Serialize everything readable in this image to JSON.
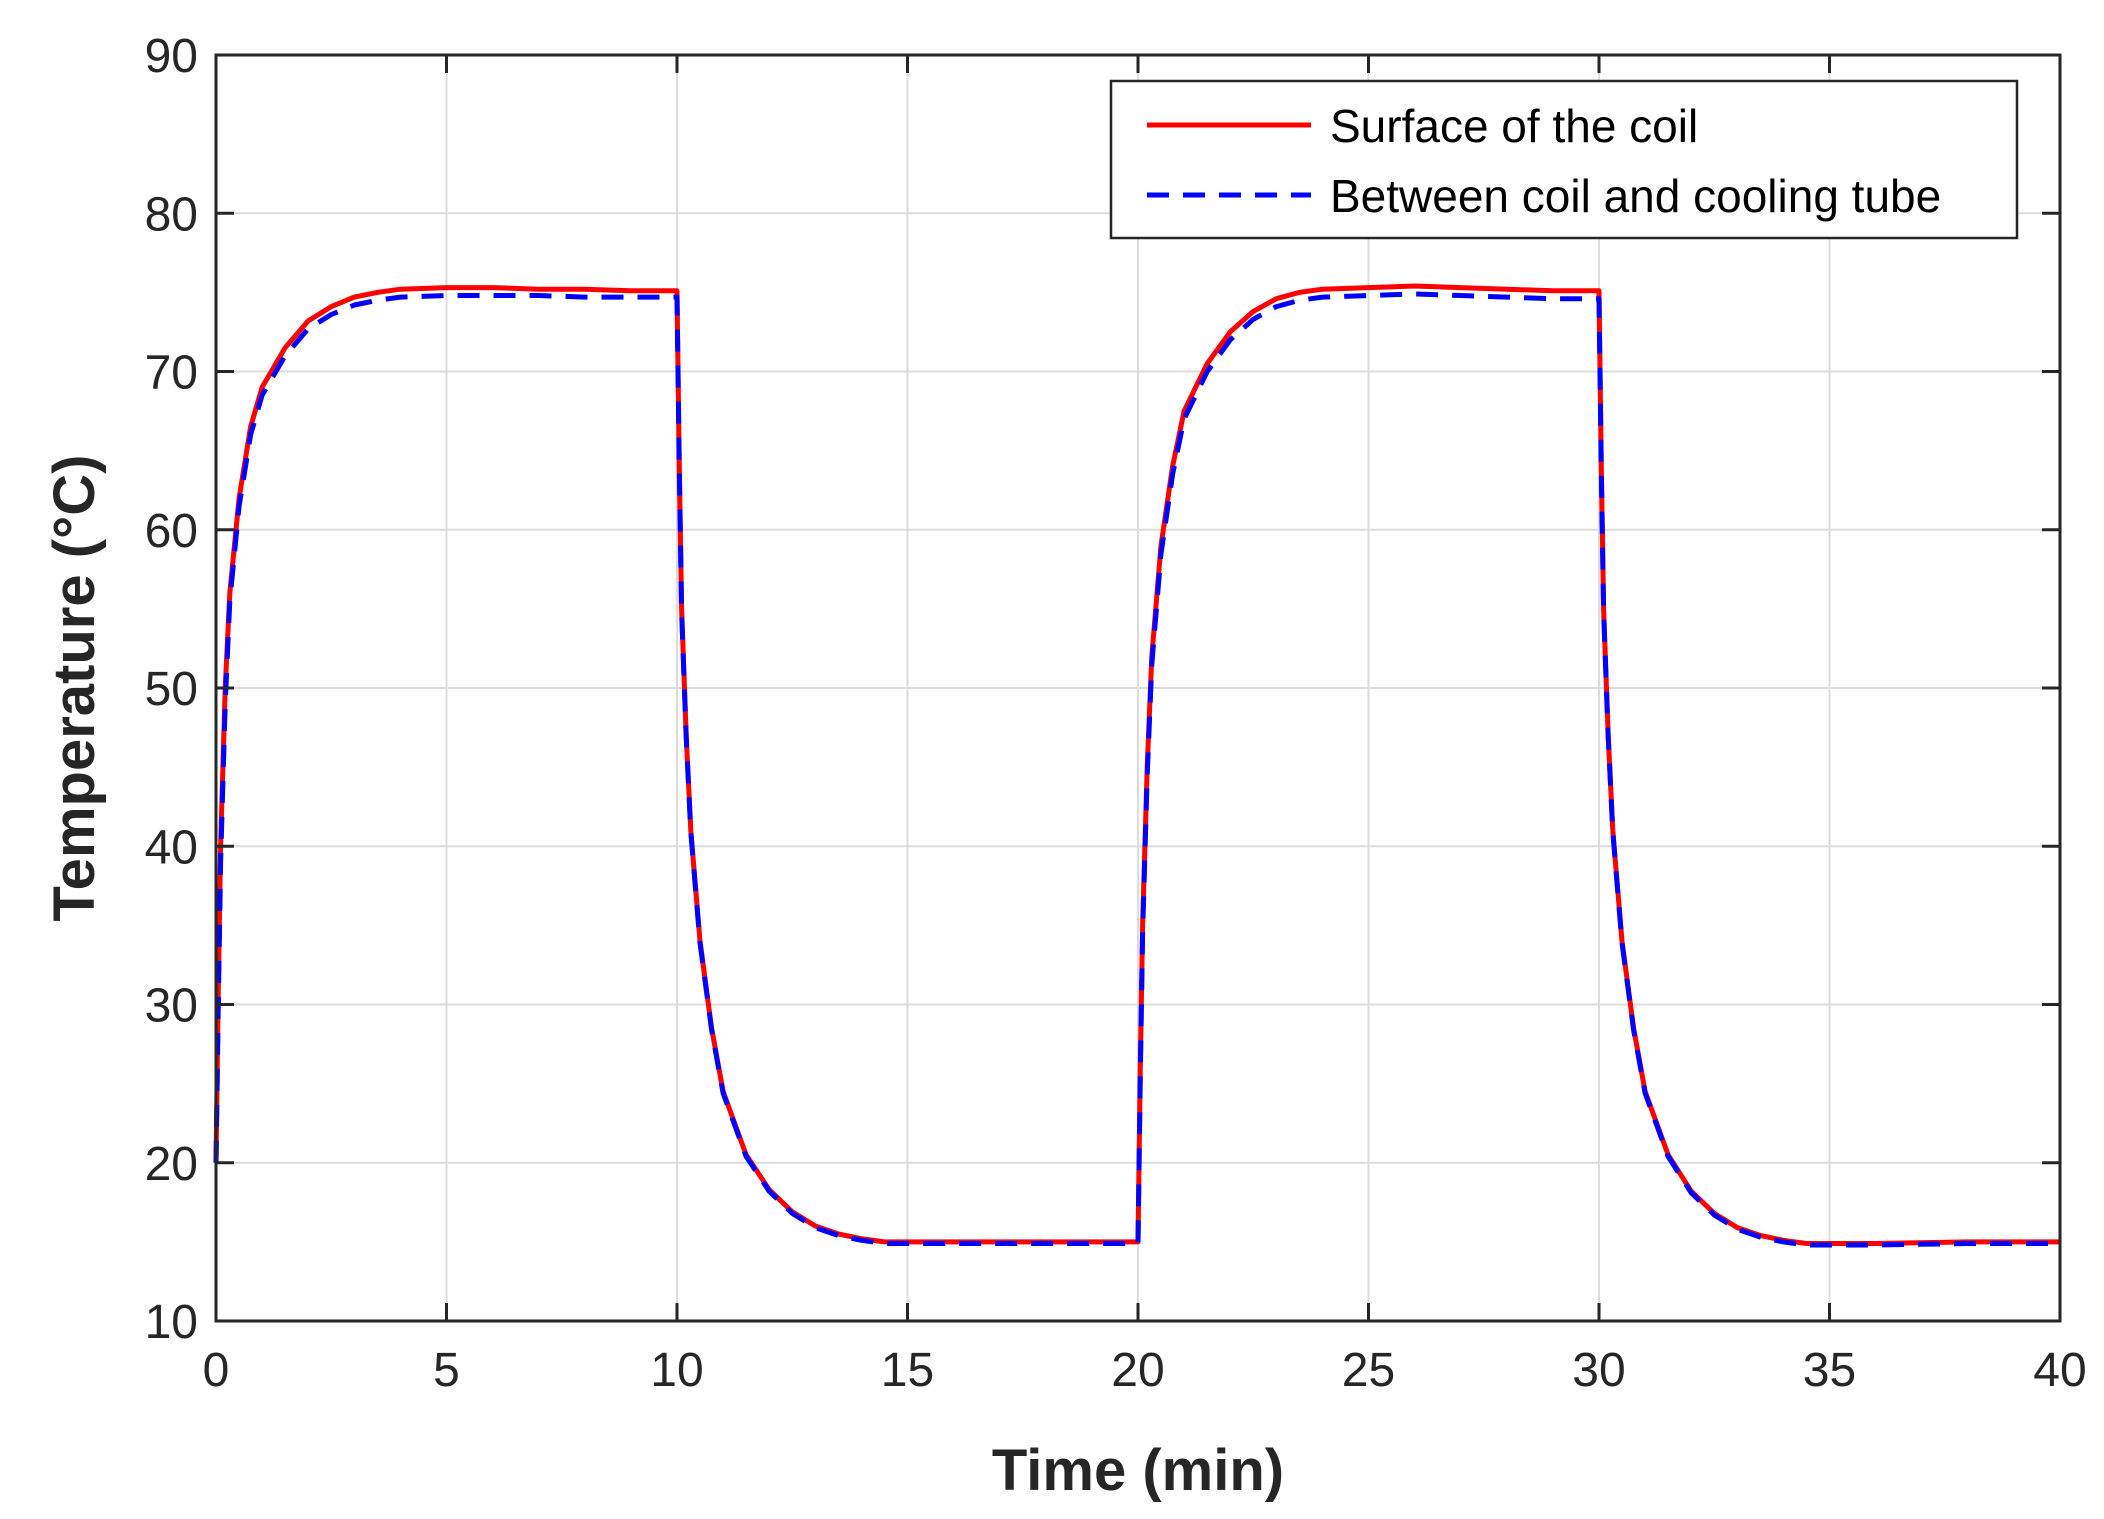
{
  "chart_data": {
    "type": "line",
    "title": "",
    "xlabel": "Time (min)",
    "ylabel": "Temperature (°C)",
    "xlim": [
      0,
      40
    ],
    "ylim": [
      10,
      90
    ],
    "xticks": [
      0,
      5,
      10,
      15,
      20,
      25,
      30,
      35,
      40
    ],
    "yticks": [
      10,
      20,
      30,
      40,
      50,
      60,
      70,
      80,
      90
    ],
    "grid": true,
    "legend_position": "top-right",
    "series": [
      {
        "name": "Surface of the coil",
        "color": "#ff0000",
        "style": "solid",
        "x": [
          0,
          0.05,
          0.1,
          0.2,
          0.3,
          0.5,
          0.75,
          1.0,
          1.5,
          2.0,
          2.5,
          3.0,
          3.5,
          4.0,
          5.0,
          6.0,
          7.0,
          8.0,
          9.0,
          10.0,
          10.05,
          10.1,
          10.2,
          10.3,
          10.5,
          10.75,
          11.0,
          11.5,
          12.0,
          12.5,
          13.0,
          13.5,
          14.0,
          14.5,
          15.0,
          16.0,
          18.0,
          20.0,
          20.05,
          20.1,
          20.2,
          20.3,
          20.5,
          20.75,
          21.0,
          21.5,
          22.0,
          22.5,
          23.0,
          23.5,
          24.0,
          25.0,
          26.0,
          27.0,
          28.0,
          29.0,
          30.0,
          30.05,
          30.1,
          30.2,
          30.3,
          30.5,
          30.75,
          31.0,
          31.5,
          32.0,
          32.5,
          33.0,
          33.5,
          34.0,
          34.5,
          35.0,
          36.0,
          38.0,
          40.0
        ],
        "values": [
          20,
          31,
          40,
          50,
          56,
          62,
          66.5,
          69,
          71.5,
          73.2,
          74.1,
          74.7,
          75.0,
          75.2,
          75.3,
          75.3,
          75.2,
          75.2,
          75.1,
          75.1,
          64,
          55,
          47,
          41,
          34,
          28.5,
          24.5,
          20.5,
          18.3,
          16.9,
          16.0,
          15.5,
          15.2,
          15.0,
          15.0,
          15.0,
          15.0,
          15.0,
          26,
          35,
          45,
          52,
          59,
          64,
          67.5,
          70.5,
          72.5,
          73.8,
          74.6,
          75.0,
          75.2,
          75.3,
          75.4,
          75.3,
          75.2,
          75.1,
          75.1,
          64,
          55,
          47,
          41,
          34,
          28.5,
          24.5,
          20.5,
          18.2,
          16.8,
          15.9,
          15.4,
          15.1,
          14.9,
          14.9,
          14.9,
          15.0,
          15.0
        ]
      },
      {
        "name": "Between coil and cooling tube",
        "color": "#0000ff",
        "style": "dashed",
        "x": [
          0,
          0.05,
          0.1,
          0.2,
          0.3,
          0.5,
          0.75,
          1.0,
          1.5,
          2.0,
          2.5,
          3.0,
          3.5,
          4.0,
          5.0,
          6.0,
          7.0,
          8.0,
          9.0,
          10.0,
          10.05,
          10.1,
          10.2,
          10.3,
          10.5,
          10.75,
          11.0,
          11.5,
          12.0,
          12.5,
          13.0,
          13.5,
          14.0,
          14.5,
          15.0,
          16.0,
          18.0,
          20.0,
          20.05,
          20.1,
          20.2,
          20.3,
          20.5,
          20.75,
          21.0,
          21.5,
          22.0,
          22.5,
          23.0,
          23.5,
          24.0,
          25.0,
          26.0,
          27.0,
          28.0,
          29.0,
          30.0,
          30.05,
          30.1,
          30.2,
          30.3,
          30.5,
          30.75,
          31.0,
          31.5,
          32.0,
          32.5,
          33.0,
          33.5,
          34.0,
          34.5,
          35.0,
          36.0,
          38.0,
          40.0
        ],
        "values": [
          20,
          30,
          39,
          49,
          55.5,
          61.5,
          66,
          68.5,
          71,
          72.7,
          73.6,
          74.2,
          74.5,
          74.7,
          74.8,
          74.8,
          74.8,
          74.7,
          74.7,
          74.7,
          63.8,
          54.8,
          46.9,
          40.9,
          33.9,
          28.4,
          24.4,
          20.4,
          18.2,
          16.8,
          15.9,
          15.4,
          15.1,
          14.9,
          14.9,
          14.9,
          14.9,
          14.9,
          25.5,
          34.5,
          44.5,
          51.5,
          58.5,
          63.5,
          67,
          70,
          72,
          73.3,
          74.1,
          74.5,
          74.7,
          74.8,
          74.9,
          74.8,
          74.7,
          74.6,
          74.6,
          63.8,
          54.8,
          46.9,
          40.9,
          33.9,
          28.4,
          24.4,
          20.4,
          18.1,
          16.7,
          15.8,
          15.3,
          15.0,
          14.8,
          14.8,
          14.8,
          14.9,
          14.9
        ]
      }
    ]
  }
}
